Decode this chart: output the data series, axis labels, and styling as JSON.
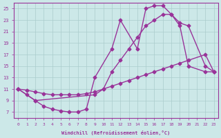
{
  "xlabel": "Windchill (Refroidissement éolien,°C)",
  "bg_color": "#cce8e8",
  "line_color": "#993399",
  "grid_color": "#aacccc",
  "xlim": [
    -0.5,
    23.5
  ],
  "ylim": [
    6,
    26
  ],
  "xticks": [
    0,
    1,
    2,
    3,
    4,
    5,
    6,
    7,
    8,
    9,
    10,
    11,
    12,
    13,
    14,
    15,
    16,
    17,
    18,
    19,
    20,
    21,
    22,
    23
  ],
  "yticks": [
    7,
    9,
    11,
    13,
    15,
    17,
    19,
    21,
    23,
    25
  ],
  "series": [
    {
      "x": [
        0,
        1,
        2,
        3,
        4,
        5,
        6,
        7,
        8,
        9,
        11,
        12,
        14,
        15,
        16,
        17,
        18,
        19,
        20,
        22,
        23
      ],
      "y": [
        11,
        10,
        9,
        8,
        7.5,
        7.2,
        7,
        7,
        7.5,
        13,
        18,
        23,
        18,
        25,
        25.5,
        25.5,
        24,
        22,
        15,
        14,
        14
      ],
      "marker": "D",
      "markersize": 2.5,
      "linewidth": 1.0
    },
    {
      "x": [
        0,
        2,
        9,
        10,
        11,
        12,
        13,
        14,
        15,
        16,
        17,
        18,
        19,
        20,
        22,
        23
      ],
      "y": [
        11,
        9,
        10,
        11,
        14,
        16,
        18,
        20,
        22,
        23,
        24,
        24,
        22.5,
        22,
        15,
        14
      ],
      "marker": "D",
      "markersize": 2.5,
      "linewidth": 1.0
    },
    {
      "x": [
        0,
        1,
        2,
        3,
        4,
        5,
        6,
        7,
        8,
        9,
        10,
        11,
        12,
        13,
        14,
        15,
        16,
        17,
        18,
        19,
        20,
        22,
        23
      ],
      "y": [
        11,
        10.8,
        10.5,
        10.2,
        10,
        10,
        10,
        10,
        10.2,
        10.5,
        11,
        11.5,
        12,
        12.5,
        13,
        13.5,
        14,
        14.5,
        15,
        15.5,
        16,
        17,
        14
      ],
      "marker": "D",
      "markersize": 2.5,
      "linewidth": 1.0
    }
  ]
}
